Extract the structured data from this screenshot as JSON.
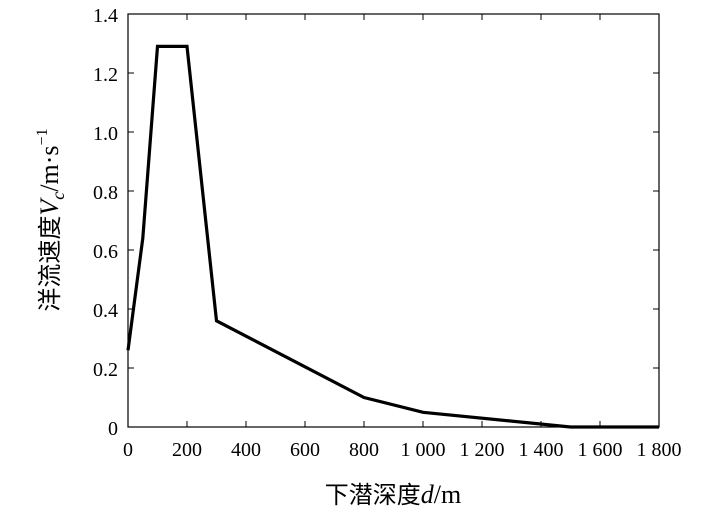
{
  "chart_data": {
    "type": "line",
    "title": "",
    "xlabel": {
      "prefix": "下潜深度",
      "symbol": "d",
      "unit": "/m"
    },
    "ylabel": {
      "prefix": "洋流速度",
      "symbol": "V",
      "subscript": "c",
      "unit": "/m·s",
      "superscript": "−1"
    },
    "xlim": [
      0,
      1800
    ],
    "ylim": [
      0,
      1.4
    ],
    "x_ticks": [
      0,
      200,
      400,
      600,
      800,
      1000,
      1200,
      1400,
      1600,
      1800
    ],
    "x_tick_labels": [
      "0",
      "200",
      "400",
      "600",
      "800",
      "1 000",
      "1 200",
      "1 400",
      "1 600",
      "1 800"
    ],
    "y_ticks": [
      0,
      0.2,
      0.4,
      0.6,
      0.8,
      1.0,
      1.2,
      1.4
    ],
    "y_tick_labels": [
      "0",
      "0.2",
      "0.4",
      "0.6",
      "0.8",
      "1.0",
      "1.2",
      "1.4"
    ],
    "grid": false,
    "series": [
      {
        "x": [
          0,
          50,
          100,
          200,
          300,
          800,
          1000,
          1500,
          1800
        ],
        "y": [
          0.26,
          0.64,
          1.29,
          1.29,
          0.36,
          0.1,
          0.05,
          0.0,
          0.0
        ]
      }
    ],
    "colors": {
      "line": "#000000",
      "axis": "#000000"
    }
  }
}
